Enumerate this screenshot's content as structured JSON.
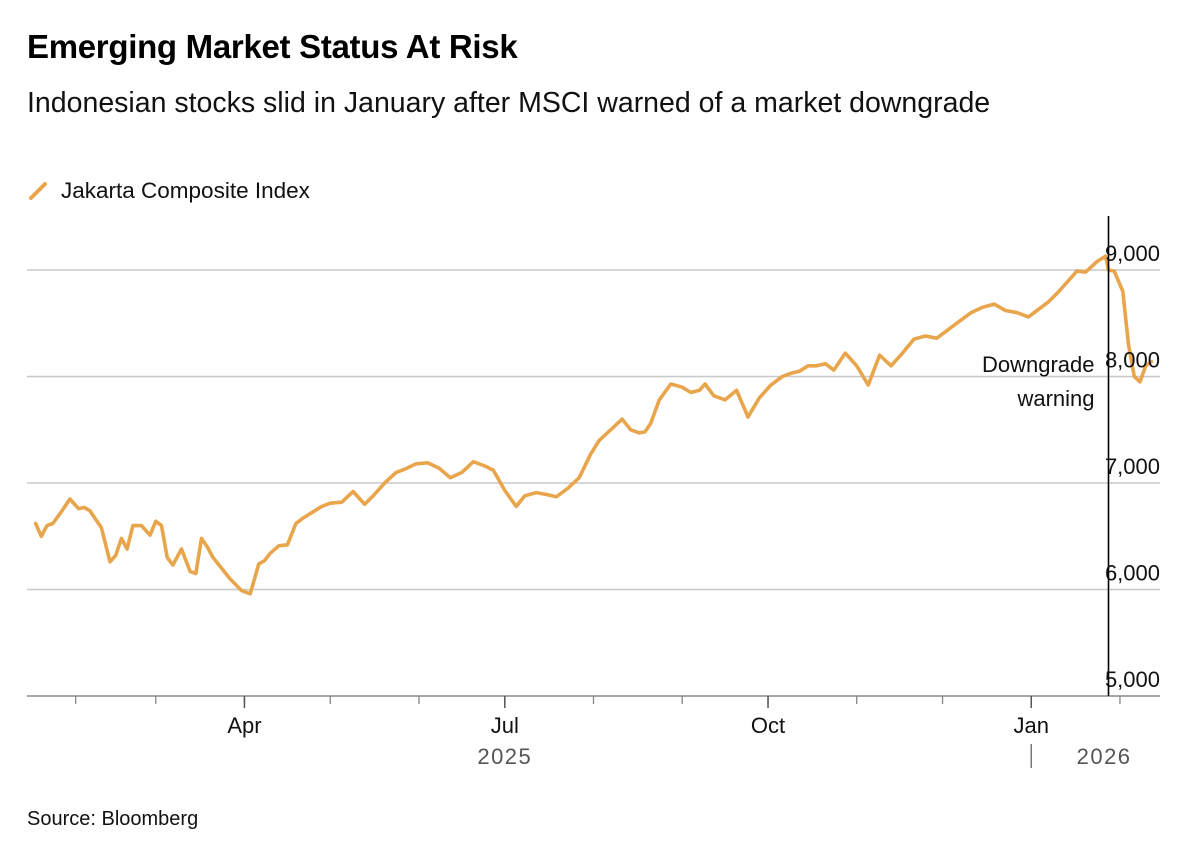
{
  "title": "Emerging Market Status At Risk",
  "subtitle": "Indonesian stocks slid in January after MSCI warned of a market downgrade",
  "source": "Source: Bloomberg",
  "colors": {
    "series": "#E9A54B",
    "grid": "#c8c8c8",
    "axis": "#888888",
    "text": "#111111",
    "marker": "#000000"
  },
  "chart_data": {
    "type": "line",
    "title": "Emerging Market Status At Risk",
    "legend": "top-left",
    "grid": true,
    "xlabel": "",
    "ylabel": "",
    "ylim": [
      5000,
      9000
    ],
    "yticks": [
      5000,
      6000,
      7000,
      8000,
      9000
    ],
    "ytick_labels": [
      "5,000",
      "6,000",
      "7,000",
      "8,000",
      "9,000"
    ],
    "x_range": [
      "2025-01-15",
      "2026-02-15"
    ],
    "x_ticks": [
      {
        "date": "2025-04-01",
        "label": "Apr"
      },
      {
        "date": "2025-07-01",
        "label": "Jul"
      },
      {
        "date": "2025-10-01",
        "label": "Oct"
      },
      {
        "date": "2026-01-01",
        "label": "Jan"
      }
    ],
    "year_labels": [
      {
        "label": "2025",
        "date": "2025-07-01"
      },
      {
        "label": "2026",
        "date": "2026-01-31"
      }
    ],
    "annotation": {
      "date": "2026-01-28",
      "lines": [
        "Downgrade",
        "warning"
      ]
    },
    "series": [
      {
        "name": "Jakarta Composite Index",
        "x": [
          "2025-01-18",
          "2025-01-20",
          "2025-01-22",
          "2025-01-24",
          "2025-01-27",
          "2025-01-30",
          "2025-02-02",
          "2025-02-04",
          "2025-02-06",
          "2025-02-10",
          "2025-02-13",
          "2025-02-15",
          "2025-02-17",
          "2025-02-19",
          "2025-02-21",
          "2025-02-24",
          "2025-02-27",
          "2025-03-01",
          "2025-03-03",
          "2025-03-05",
          "2025-03-07",
          "2025-03-10",
          "2025-03-13",
          "2025-03-15",
          "2025-03-17",
          "2025-03-19",
          "2025-03-21",
          "2025-03-24",
          "2025-03-27",
          "2025-03-31",
          "2025-04-03",
          "2025-04-06",
          "2025-04-08",
          "2025-04-10",
          "2025-04-13",
          "2025-04-16",
          "2025-04-19",
          "2025-04-22",
          "2025-04-25",
          "2025-04-28",
          "2025-05-01",
          "2025-05-05",
          "2025-05-09",
          "2025-05-13",
          "2025-05-16",
          "2025-05-20",
          "2025-05-24",
          "2025-05-27",
          "2025-05-31",
          "2025-06-04",
          "2025-06-08",
          "2025-06-12",
          "2025-06-16",
          "2025-06-20",
          "2025-06-24",
          "2025-06-27",
          "2025-07-01",
          "2025-07-05",
          "2025-07-08",
          "2025-07-12",
          "2025-07-16",
          "2025-07-19",
          "2025-07-23",
          "2025-07-27",
          "2025-07-31",
          "2025-08-03",
          "2025-08-07",
          "2025-08-11",
          "2025-08-14",
          "2025-08-17",
          "2025-08-19",
          "2025-08-21",
          "2025-08-24",
          "2025-08-28",
          "2025-09-01",
          "2025-09-04",
          "2025-09-07",
          "2025-09-09",
          "2025-09-12",
          "2025-09-16",
          "2025-09-20",
          "2025-09-24",
          "2025-09-28",
          "2025-10-02",
          "2025-10-06",
          "2025-10-09",
          "2025-10-12",
          "2025-10-15",
          "2025-10-18",
          "2025-10-21",
          "2025-10-24",
          "2025-10-28",
          "2025-11-01",
          "2025-11-05",
          "2025-11-09",
          "2025-11-13",
          "2025-11-17",
          "2025-11-21",
          "2025-11-25",
          "2025-11-29",
          "2025-12-03",
          "2025-12-07",
          "2025-12-11",
          "2025-12-15",
          "2025-12-19",
          "2025-12-23",
          "2025-12-27",
          "2025-12-31",
          "2026-01-03",
          "2026-01-07",
          "2026-01-10",
          "2026-01-14",
          "2026-01-17",
          "2026-01-20",
          "2026-01-24",
          "2026-01-27",
          "2026-01-28",
          "2026-01-30",
          "2026-02-02",
          "2026-02-04",
          "2026-02-06",
          "2026-02-08",
          "2026-02-10",
          "2026-02-12"
        ],
        "values": [
          6620,
          6500,
          6600,
          6620,
          6730,
          6850,
          6760,
          6770,
          6740,
          6580,
          6260,
          6320,
          6480,
          6380,
          6600,
          6600,
          6510,
          6640,
          6600,
          6300,
          6230,
          6380,
          6170,
          6150,
          6480,
          6400,
          6300,
          6200,
          6100,
          5990,
          5960,
          6240,
          6270,
          6340,
          6410,
          6420,
          6620,
          6680,
          6730,
          6780,
          6810,
          6820,
          6920,
          6800,
          6880,
          7000,
          7100,
          7130,
          7180,
          7190,
          7140,
          7050,
          7100,
          7200,
          7160,
          7120,
          6930,
          6780,
          6880,
          6910,
          6890,
          6870,
          6950,
          7050,
          7270,
          7400,
          7500,
          7600,
          7500,
          7470,
          7480,
          7560,
          7780,
          7930,
          7900,
          7850,
          7870,
          7930,
          7820,
          7780,
          7870,
          7620,
          7800,
          7920,
          8000,
          8030,
          8050,
          8100,
          8100,
          8120,
          8060,
          8220,
          8100,
          7920,
          8200,
          8100,
          8220,
          8350,
          8380,
          8360,
          8440,
          8520,
          8600,
          8650,
          8680,
          8620,
          8600,
          8560,
          8620,
          8700,
          8780,
          8900,
          8990,
          8980,
          9080,
          9130,
          9000,
          8990,
          8800,
          8300,
          8000,
          7950,
          8100,
          8140
        ],
        "color": "#E9A54B"
      }
    ]
  }
}
